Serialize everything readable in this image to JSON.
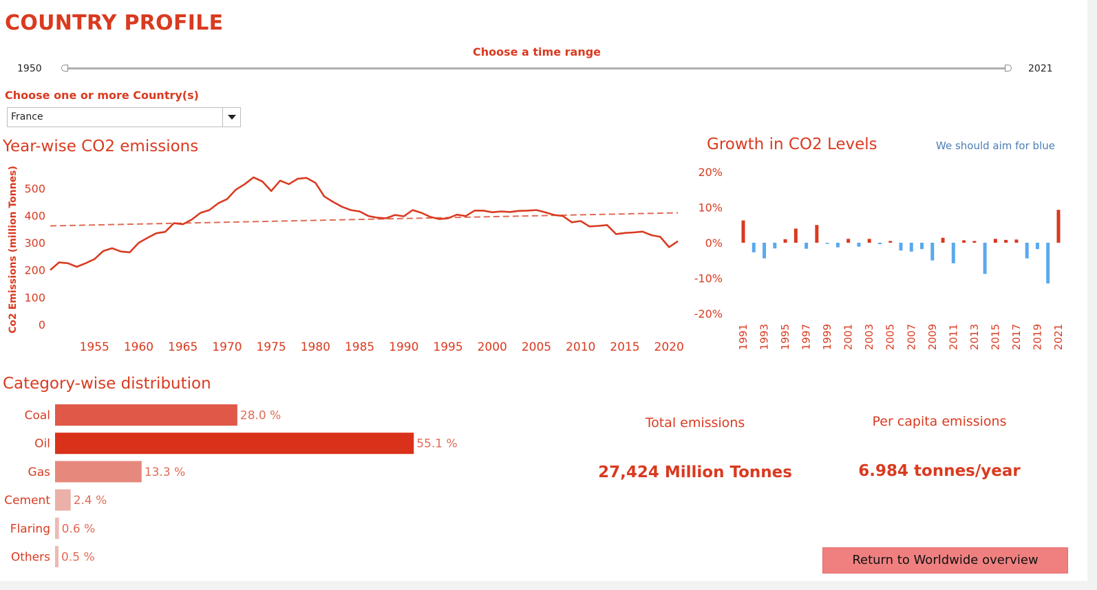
{
  "header": {
    "title": "COUNTRY PROFILE"
  },
  "time_range": {
    "label": "Choose a time range",
    "start": "1950",
    "end": "2021"
  },
  "country_filter": {
    "label": "Choose one or more Country(s)",
    "selected": "France"
  },
  "kpis": {
    "total_title": "Total emissions",
    "total_value": "27,424 Million Tonnes",
    "percap_title": "Per capita emissions",
    "percap_value": "6.984 tonnes/year"
  },
  "buttons": {
    "return_label": "Return to Worldwide overview"
  },
  "colors": {
    "accent": "#d93a20",
    "positive_bar": "#d93a20",
    "negative_bar": "#5aa9ee",
    "note": "#4a7db5",
    "button": "#f08080"
  },
  "chart_data": [
    {
      "type": "line",
      "title": "Year-wise CO2 emissions",
      "xlabel": "",
      "ylabel": "Co2 Emissions (million Tonnes)",
      "xlim": [
        1950,
        2021
      ],
      "ylim": [
        0,
        560
      ],
      "x_ticks": [
        "1955",
        "1960",
        "1965",
        "1970",
        "1975",
        "1980",
        "1985",
        "1990",
        "1995",
        "2000",
        "2005",
        "2010",
        "2015",
        "2020"
      ],
      "y_ticks": [
        "0",
        "100",
        "200",
        "300",
        "400",
        "500"
      ],
      "x": [
        1950,
        1951,
        1952,
        1953,
        1954,
        1955,
        1956,
        1957,
        1958,
        1959,
        1960,
        1961,
        1962,
        1963,
        1964,
        1965,
        1966,
        1967,
        1968,
        1969,
        1970,
        1971,
        1972,
        1973,
        1974,
        1975,
        1976,
        1977,
        1978,
        1979,
        1980,
        1981,
        1982,
        1983,
        1984,
        1985,
        1986,
        1987,
        1988,
        1989,
        1990,
        1991,
        1992,
        1993,
        1994,
        1995,
        1996,
        1997,
        1998,
        1999,
        2000,
        2001,
        2002,
        2003,
        2004,
        2005,
        2006,
        2007,
        2008,
        2009,
        2010,
        2011,
        2012,
        2013,
        2014,
        2015,
        2016,
        2017,
        2018,
        2019,
        2020,
        2021
      ],
      "values": [
        200,
        228,
        225,
        212,
        225,
        240,
        270,
        280,
        268,
        265,
        300,
        318,
        335,
        340,
        372,
        368,
        385,
        410,
        420,
        445,
        460,
        495,
        515,
        540,
        525,
        490,
        528,
        515,
        535,
        538,
        520,
        470,
        450,
        432,
        420,
        415,
        398,
        392,
        390,
        402,
        397,
        420,
        410,
        395,
        387,
        390,
        403,
        398,
        418,
        418,
        412,
        415,
        413,
        417,
        418,
        420,
        412,
        402,
        398,
        375,
        380,
        360,
        362,
        365,
        332,
        336,
        338,
        341,
        328,
        322,
        284,
        306
      ],
      "trendline": [
        1950,
        362,
        2021,
        410
      ],
      "colors": {
        "line": "#d93a20",
        "trend": "#e06a55"
      }
    },
    {
      "type": "bar",
      "title": "Growth in CO2 Levels",
      "annotation": "We should aim for blue",
      "xlabel": "",
      "ylabel": "",
      "ylim": [
        -20,
        20
      ],
      "y_ticks": [
        "20%",
        "10%",
        "0%",
        "-10%",
        "-20%"
      ],
      "x_tick_labels": [
        "1991",
        "1993",
        "1995",
        "1997",
        "1999",
        "2001",
        "2003",
        "2005",
        "2007",
        "2009",
        "2011",
        "2013",
        "2015",
        "2017",
        "2019",
        "2021"
      ],
      "categories": [
        "1991",
        "1992",
        "1993",
        "1994",
        "1995",
        "1996",
        "1997",
        "1998",
        "1999",
        "2000",
        "2001",
        "2002",
        "2003",
        "2004",
        "2005",
        "2006",
        "2007",
        "2008",
        "2009",
        "2010",
        "2011",
        "2012",
        "2013",
        "2014",
        "2015",
        "2016",
        "2017",
        "2018",
        "2019",
        "2020",
        "2021"
      ],
      "values": [
        6.3,
        -2.7,
        -4.4,
        -1.6,
        1.0,
        4.0,
        -1.7,
        5.0,
        -0.3,
        -1.3,
        1.1,
        -1.1,
        1.1,
        -0.4,
        0.5,
        -2.2,
        -2.5,
        -1.8,
        -5.0,
        1.4,
        -5.8,
        0.7,
        0.5,
        -8.8,
        1.1,
        0.8,
        0.9,
        -4.4,
        -1.8,
        -11.5,
        9.3
      ]
    },
    {
      "type": "bar",
      "orientation": "horizontal",
      "title": "Category-wise distribution",
      "categories": [
        "Coal",
        "Oil",
        "Gas",
        "Cement",
        "Flaring",
        "Others"
      ],
      "values": [
        28.0,
        55.1,
        13.3,
        2.4,
        0.6,
        0.5
      ],
      "value_labels": [
        "28.0 %",
        "55.1 %",
        "13.3 %",
        "2.4 %",
        "0.6 %",
        "0.5 %"
      ],
      "colors": [
        "#df5848",
        "#d9311a",
        "#e6897c",
        "#ebb0a8",
        "#edbab4",
        "#edbab4"
      ]
    }
  ]
}
